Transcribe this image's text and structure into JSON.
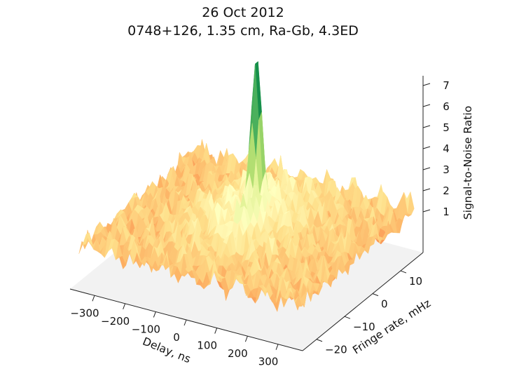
{
  "chart_data": {
    "type": "surface3d",
    "title": "26 Oct 2012",
    "subtitle": "0748+126, 1.35 cm, Ra-Gb, 4.3ED",
    "xlabel": "Delay, ns",
    "ylabel": "Fringe rate, mHz",
    "zlabel": "Signal-to-Noise Ratio",
    "x_ticks": [
      -300,
      -200,
      -100,
      0,
      100,
      200,
      300
    ],
    "x_tick_labels": [
      "−300",
      "−200",
      "−100",
      "0",
      "100",
      "200",
      "300"
    ],
    "y_ticks": [
      -20,
      -10,
      0,
      10
    ],
    "y_tick_labels": [
      "−20",
      "−10",
      "0",
      "10"
    ],
    "z_ticks": [
      1,
      2,
      3,
      4,
      5,
      6,
      7
    ],
    "z_tick_labels": [
      "1",
      "2",
      "3",
      "4",
      "5",
      "6",
      "7"
    ],
    "xlim": [
      -380,
      380
    ],
    "ylim": [
      -25,
      18
    ],
    "zlim": [
      0,
      8
    ],
    "peak": {
      "delay_ns": 0,
      "fringe_rate_mHz": 0,
      "snr": 7.4
    },
    "noise_floor_snr": 1.3,
    "colormap": [
      "#a50026",
      "#d73027",
      "#f46d43",
      "#fdae61",
      "#fee08b",
      "#ffffbf",
      "#d9ef8b",
      "#a6d96a",
      "#66bd63",
      "#1a9850",
      "#006837"
    ],
    "pane_color": "#f2f2f2",
    "grid": false
  }
}
